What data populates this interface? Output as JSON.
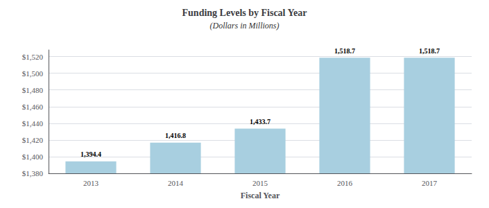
{
  "chart_data": {
    "type": "bar",
    "title": "Funding Levels by Fiscal Year",
    "subtitle": "(Dollars in Millions)",
    "xlabel": "Fiscal Year",
    "categories": [
      "2013",
      "2014",
      "2015",
      "2016",
      "2017"
    ],
    "values": [
      1394.4,
      1416.8,
      1433.7,
      1518.7,
      1518.7
    ],
    "value_labels": [
      "1,394.4",
      "1,416.8",
      "1,433.7",
      "1,518.7",
      "1,518.7"
    ],
    "data_labels": true,
    "color": "#a8cfe0",
    "ylim": [
      1380,
      1528
    ],
    "yticks": [
      {
        "value": 1380,
        "label": "$1,380"
      },
      {
        "value": 1400,
        "label": "$1,400"
      },
      {
        "value": 1420,
        "label": "$1,420"
      },
      {
        "value": 1440,
        "label": "$1,440"
      },
      {
        "value": 1460,
        "label": "$1,460"
      },
      {
        "value": 1480,
        "label": "$1,480"
      },
      {
        "value": 1500,
        "label": "$1,500"
      },
      {
        "value": 1520,
        "label": "$1,520"
      }
    ],
    "grid": true
  }
}
